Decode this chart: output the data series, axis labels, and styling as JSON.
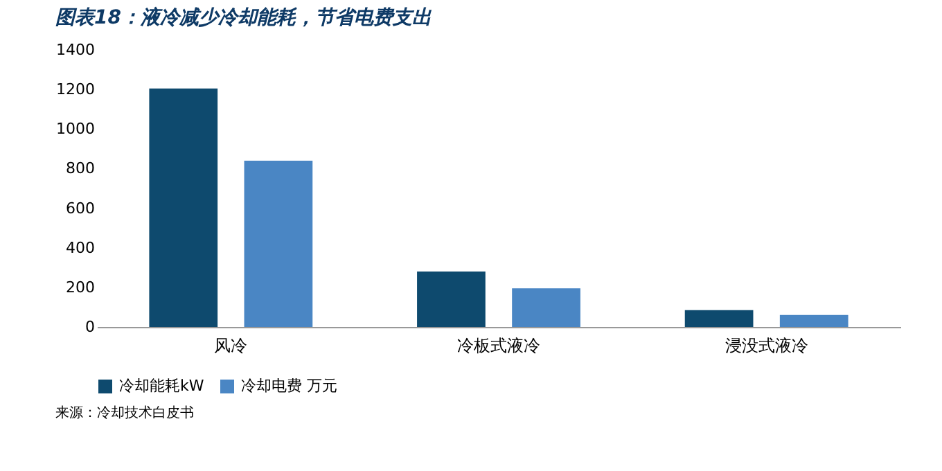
{
  "chart_data": {
    "type": "bar",
    "title": "图表18：液冷减少冷却能耗，节省电费支出",
    "categories": [
      "风冷",
      "冷板式液冷",
      "浸没式液冷"
    ],
    "series": [
      {
        "name": "冷却能耗kW",
        "color": "#0e4a6e",
        "values": [
          1205,
          280,
          85
        ]
      },
      {
        "name": "冷却电费 万元",
        "color": "#4a86c4",
        "values": [
          840,
          195,
          60
        ]
      }
    ],
    "ylim": [
      0,
      1400
    ],
    "yticks": [
      0,
      200,
      400,
      600,
      800,
      1000,
      1200,
      1400
    ],
    "grid": false,
    "legend": "bottom",
    "annotations": [
      "来源：冷却技术白皮书"
    ]
  }
}
